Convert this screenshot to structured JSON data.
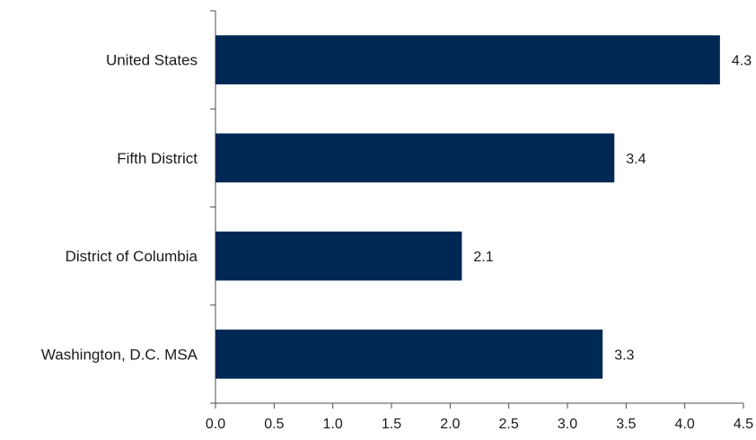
{
  "chart_data": {
    "type": "bar",
    "orientation": "horizontal",
    "categories": [
      "United States",
      "Fifth District",
      "District of Columbia",
      "Washington, D.C. MSA"
    ],
    "series": [
      {
        "values": [
          4.3,
          3.4,
          2.1,
          3.3
        ],
        "data_labels": [
          "4.3",
          "3.4",
          "2.1",
          "3.3"
        ]
      }
    ],
    "title": "",
    "xlabel": "",
    "ylabel": "",
    "xlim": [
      0,
      4.5
    ],
    "x_ticks": [
      0,
      0.5,
      1,
      1.5,
      2,
      2.5,
      3,
      3.5,
      4,
      4.5
    ],
    "x_tick_labels": [
      "0.0",
      "0.5",
      "1.0",
      "1.5",
      "2.0",
      "2.5",
      "3.0",
      "3.5",
      "4.0",
      "4.5"
    ],
    "grid": false,
    "legend": "none",
    "bar_color": "#002855"
  }
}
